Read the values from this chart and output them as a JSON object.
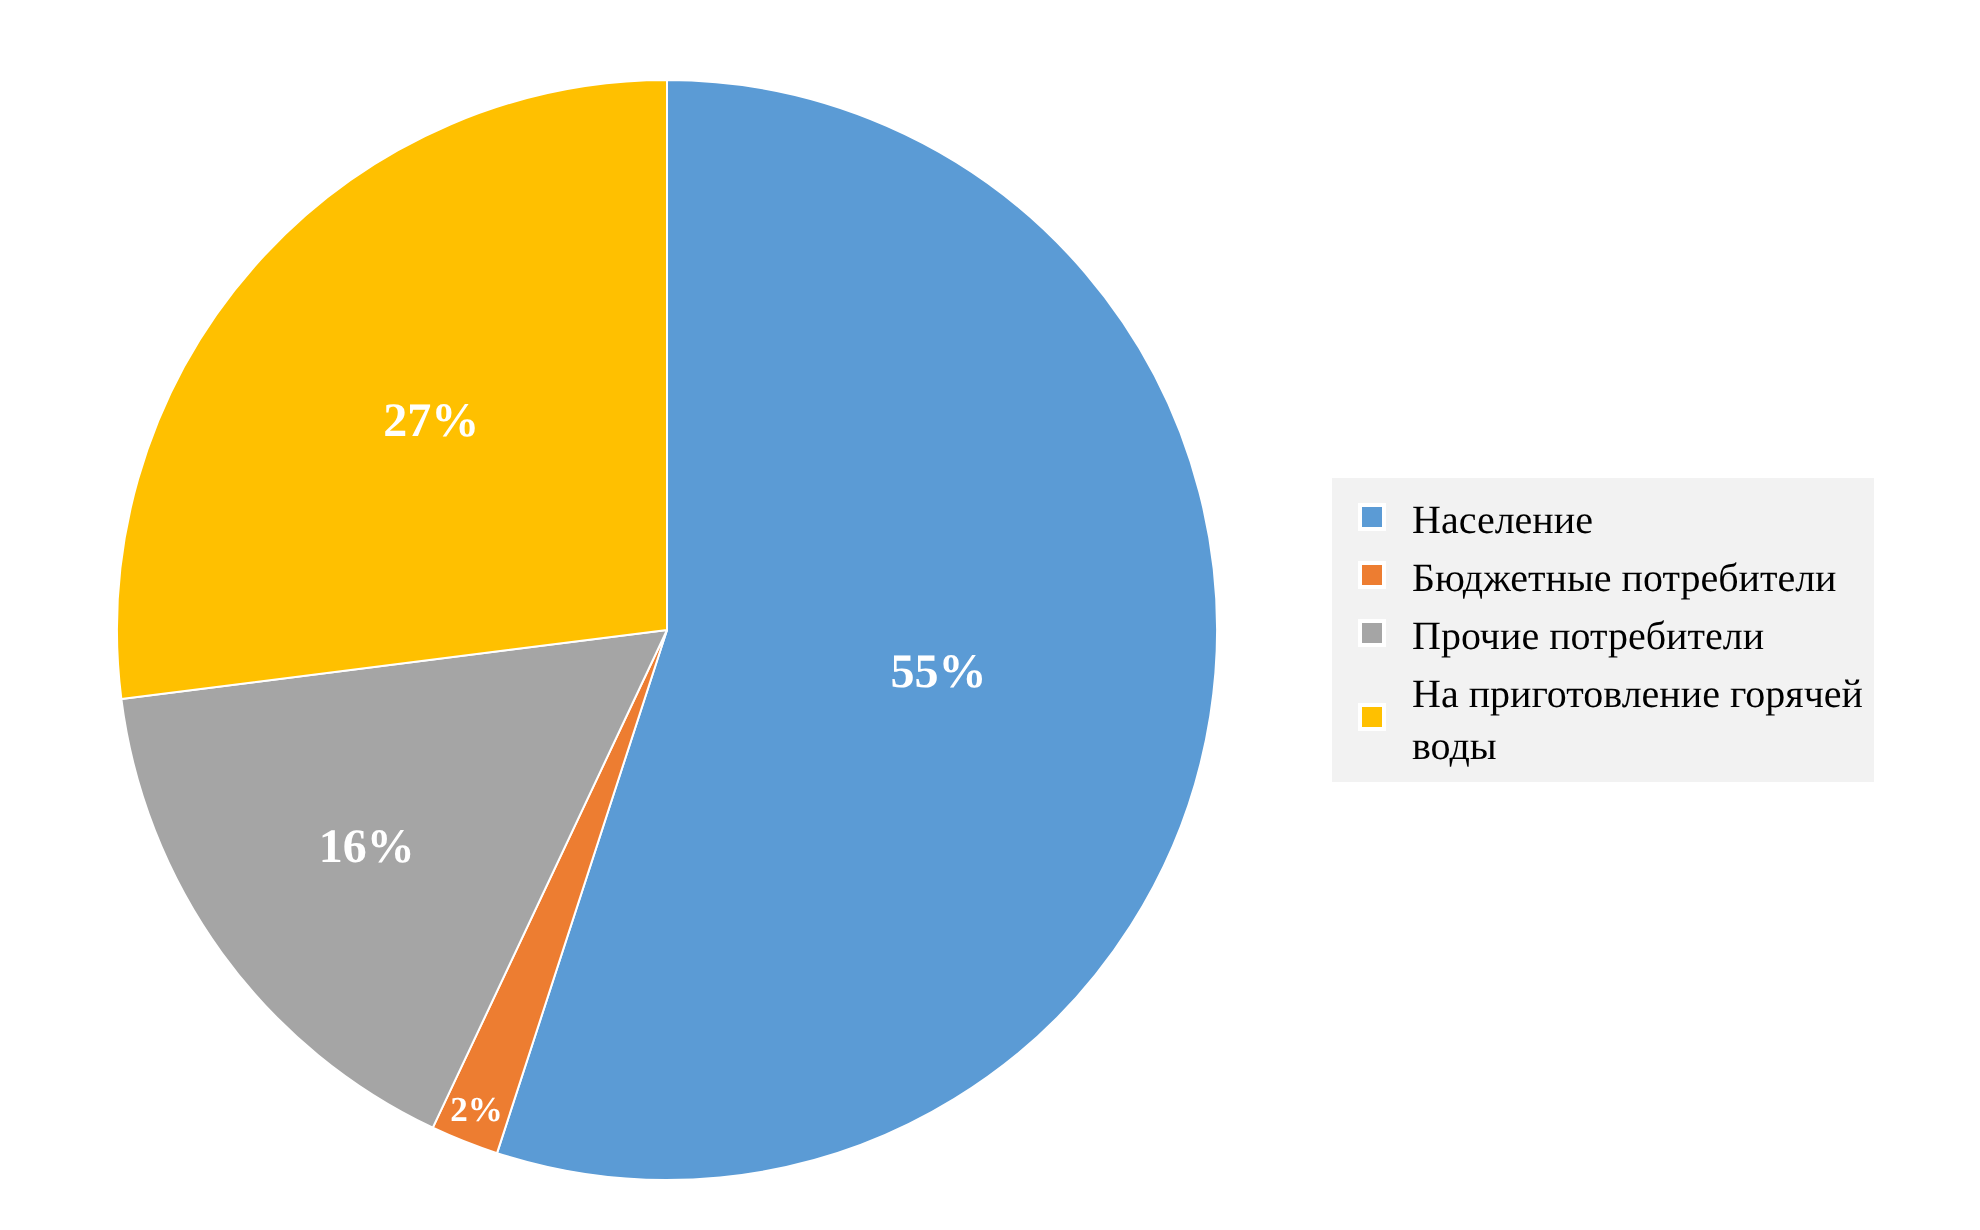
{
  "chart_data": {
    "type": "pie",
    "categories": [
      "Население",
      "Бюджетные потребители",
      "Прочие потребители",
      "На приготовление горячей воды"
    ],
    "values": [
      55,
      2,
      16,
      27
    ],
    "value_labels": [
      "55%",
      "2%",
      "16%",
      "27%"
    ],
    "colors": [
      "#5b9bd5",
      "#ed7d31",
      "#a5a5a5",
      "#ffc000"
    ],
    "legend": "right"
  }
}
